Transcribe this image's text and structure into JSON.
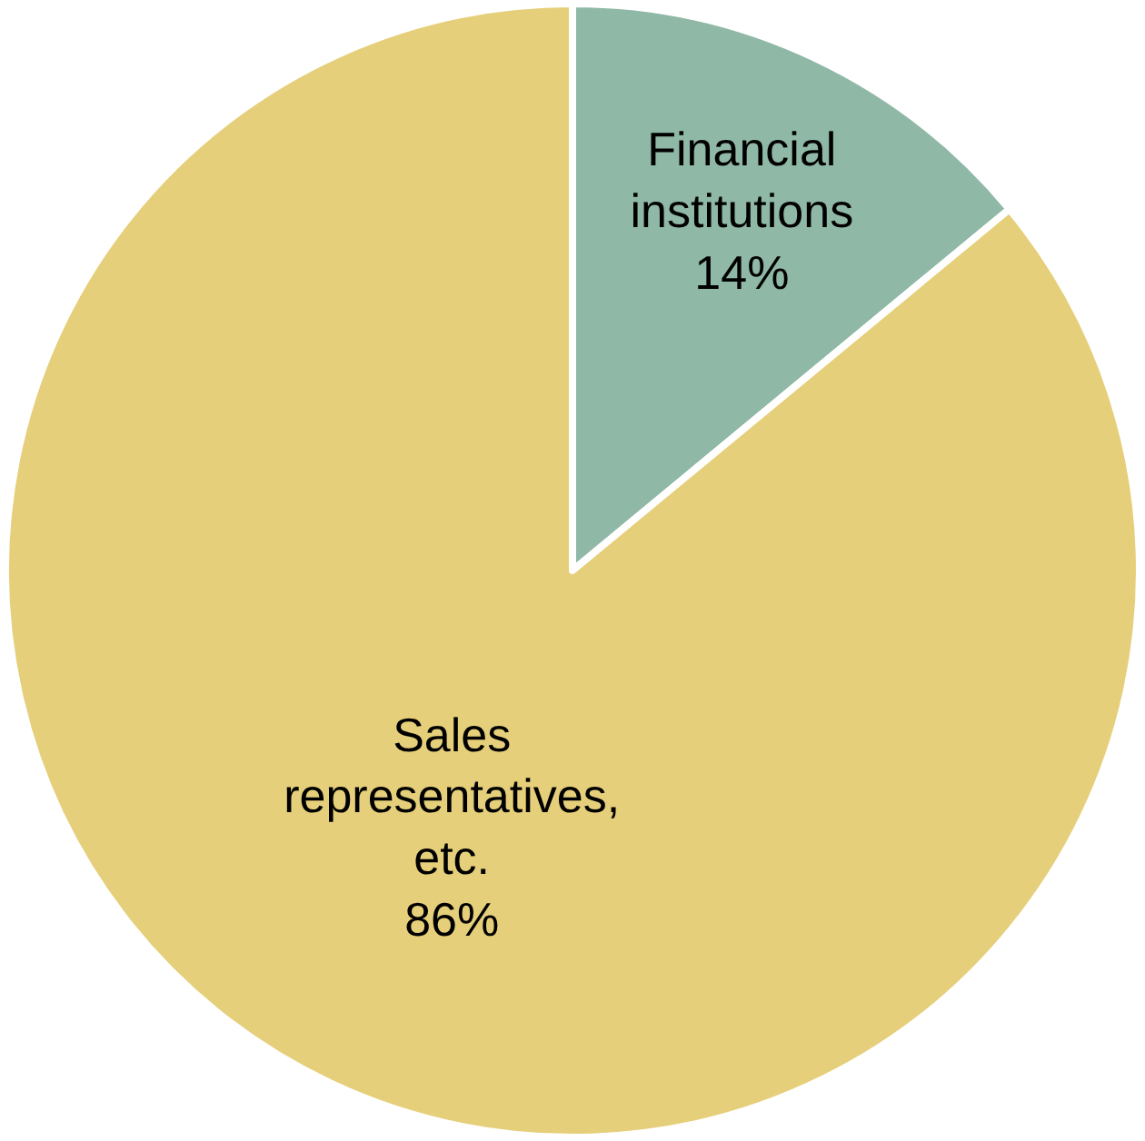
{
  "chart_data": {
    "type": "pie",
    "categories": [
      "Financial institutions",
      "Sales representatives, etc."
    ],
    "values": [
      14,
      86
    ],
    "colors": [
      "#8fb8a6",
      "#e6cf7a"
    ],
    "value_labels": [
      "14%",
      "86%"
    ],
    "legend": false
  }
}
